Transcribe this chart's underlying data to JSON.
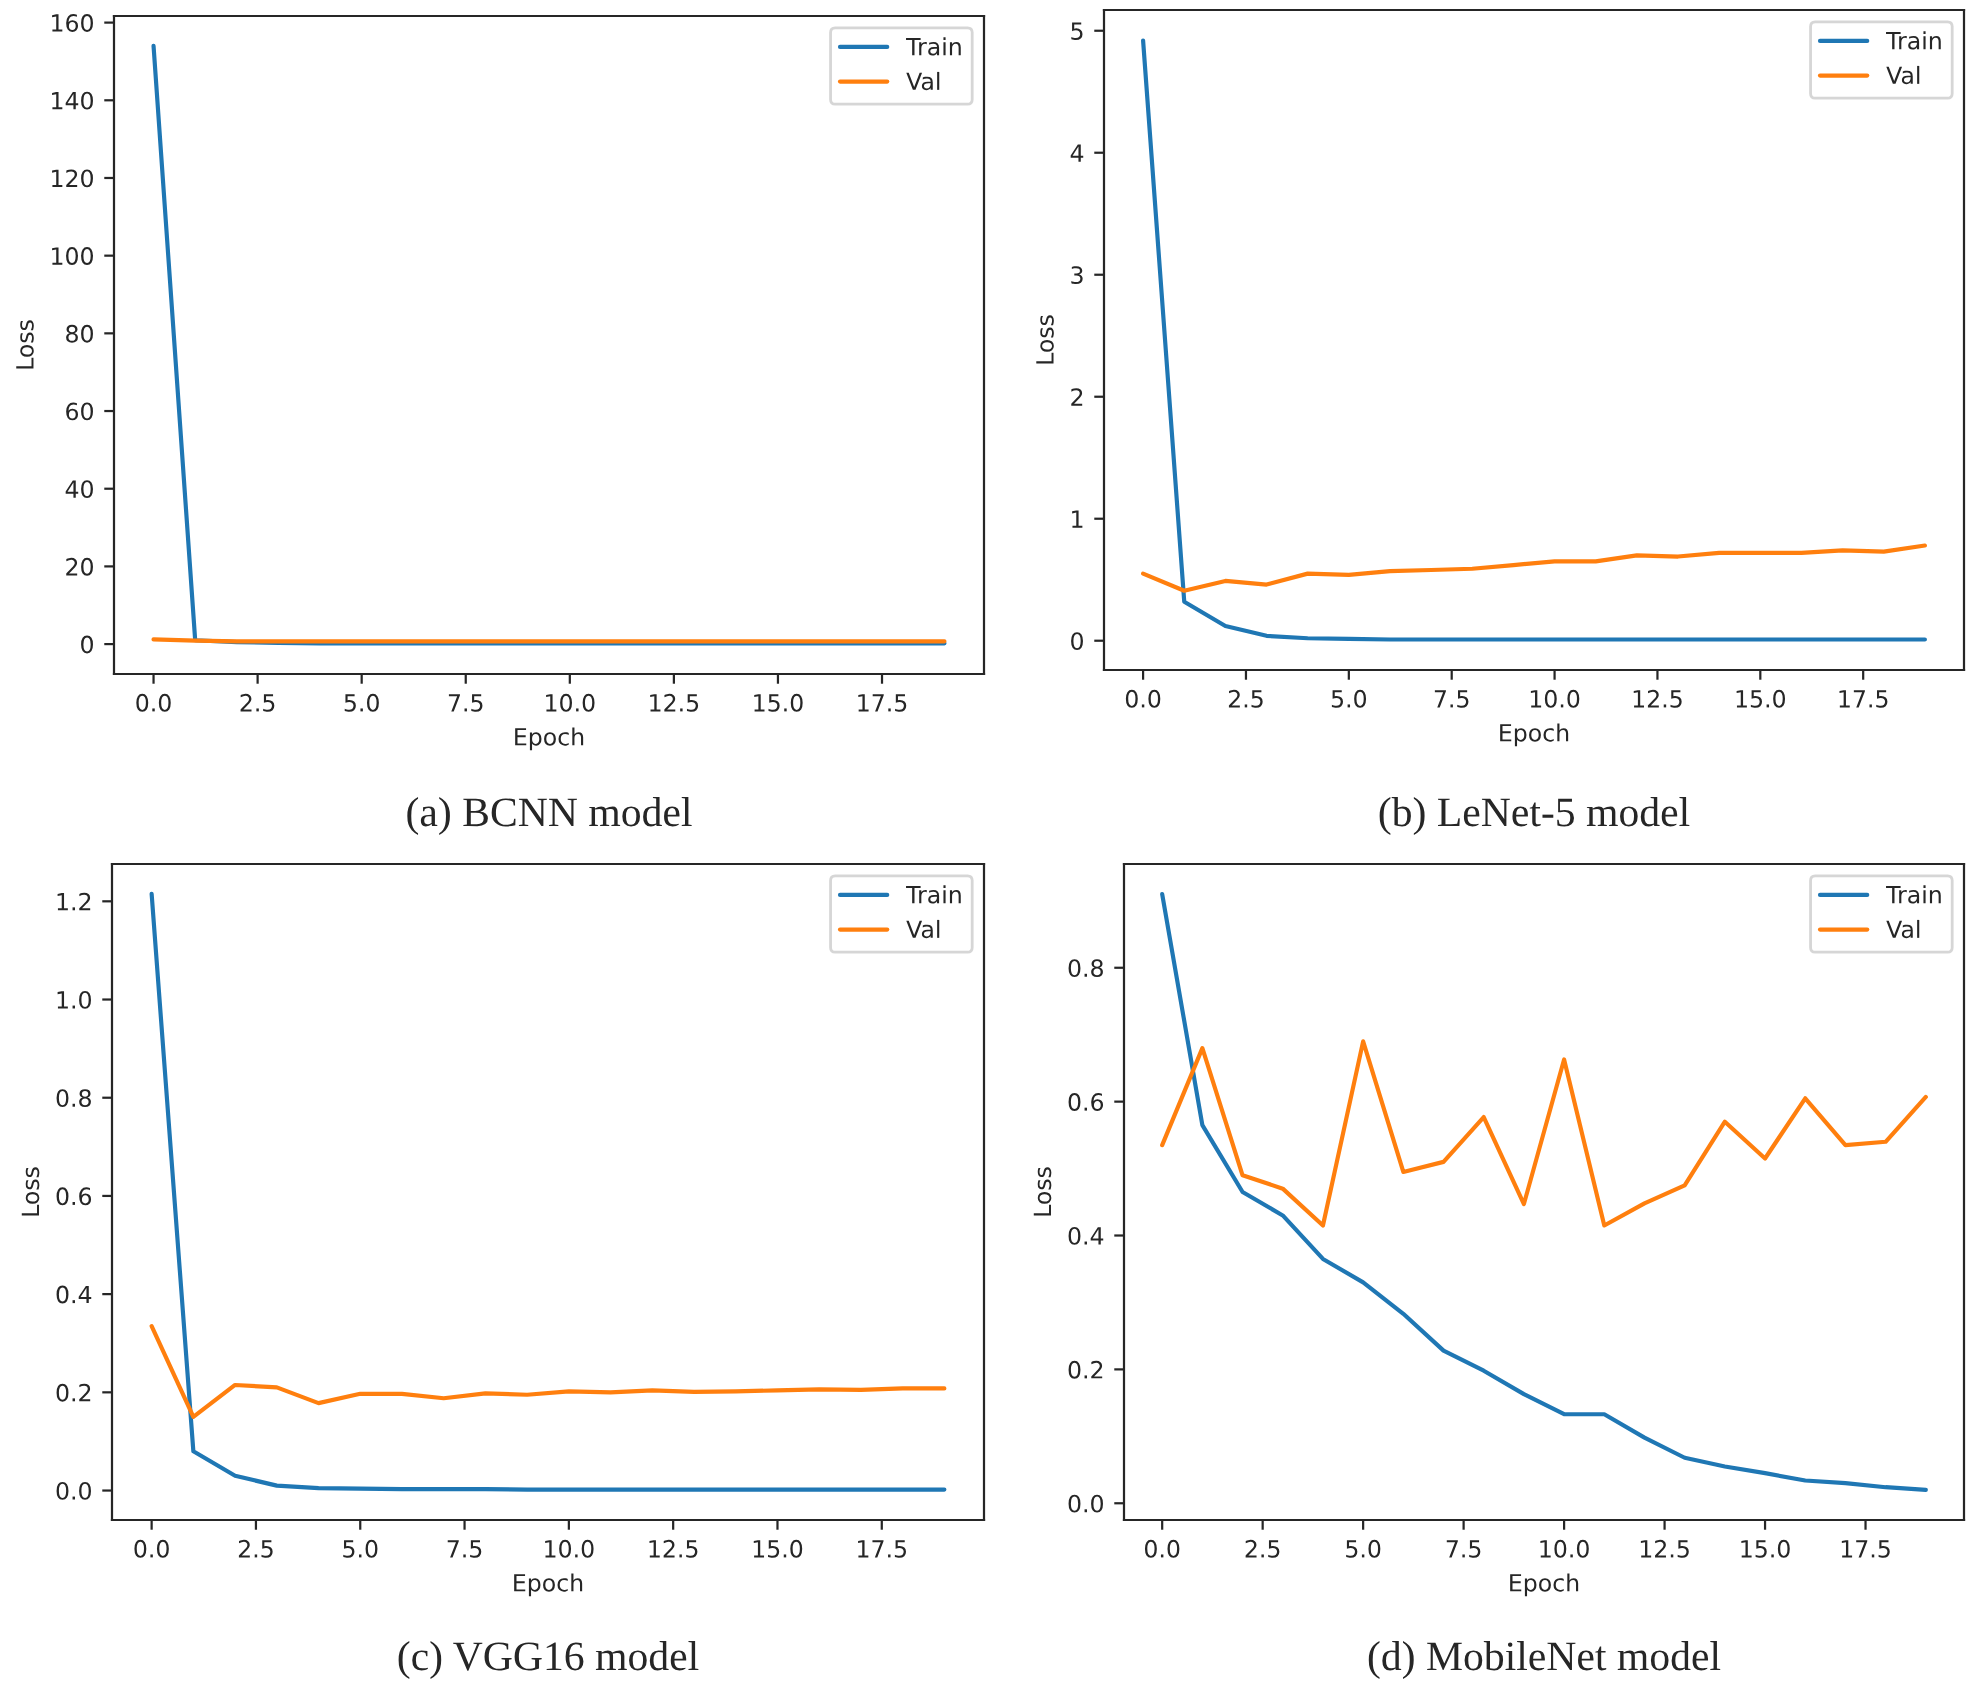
{
  "chart_data": [
    {
      "type": "line",
      "title": "(a) BCNN model",
      "xlabel": "Epoch",
      "ylabel": "Loss",
      "x": [
        0,
        1,
        2,
        3,
        4,
        5,
        6,
        7,
        8,
        9,
        10,
        11,
        12,
        13,
        14,
        15,
        16,
        17,
        18,
        19
      ],
      "series": [
        {
          "name": "Train",
          "color": "#1f77b4",
          "values": [
            154,
            1,
            0.5,
            0.3,
            0.2,
            0.2,
            0.2,
            0.2,
            0.2,
            0.2,
            0.2,
            0.2,
            0.2,
            0.2,
            0.2,
            0.2,
            0.2,
            0.2,
            0.2,
            0.2
          ]
        },
        {
          "name": "Val",
          "color": "#ff7f0e",
          "values": [
            1.2,
            0.9,
            0.7,
            0.7,
            0.7,
            0.7,
            0.7,
            0.7,
            0.7,
            0.7,
            0.7,
            0.7,
            0.7,
            0.7,
            0.7,
            0.7,
            0.7,
            0.7,
            0.7,
            0.7
          ]
        }
      ],
      "xlim": [
        -0.95,
        19.95
      ],
      "xticks": [
        {
          "value": 0,
          "label": "0.0"
        },
        {
          "value": 2.5,
          "label": "2.5"
        },
        {
          "value": 5,
          "label": "5.0"
        },
        {
          "value": 7.5,
          "label": "7.5"
        },
        {
          "value": 10,
          "label": "10.0"
        },
        {
          "value": 12.5,
          "label": "12.5"
        },
        {
          "value": 15,
          "label": "15.0"
        },
        {
          "value": 17.5,
          "label": "17.5"
        }
      ],
      "ylim": [
        -7.7,
        161.7
      ],
      "yticks": [
        0,
        20,
        40,
        60,
        80,
        100,
        120,
        140,
        160
      ],
      "legend": "top right"
    },
    {
      "type": "line",
      "title": "(b) LeNet-5 model",
      "xlabel": "Epoch",
      "ylabel": "Loss",
      "x": [
        0,
        1,
        2,
        3,
        4,
        5,
        6,
        7,
        8,
        9,
        10,
        11,
        12,
        13,
        14,
        15,
        16,
        17,
        18,
        19
      ],
      "series": [
        {
          "name": "Train",
          "color": "#1f77b4",
          "values": [
            4.92,
            0.32,
            0.12,
            0.04,
            0.02,
            0.015,
            0.01,
            0.01,
            0.01,
            0.01,
            0.01,
            0.01,
            0.01,
            0.01,
            0.01,
            0.01,
            0.01,
            0.01,
            0.01,
            0.01
          ]
        },
        {
          "name": "Val",
          "color": "#ff7f0e",
          "values": [
            0.55,
            0.41,
            0.49,
            0.46,
            0.55,
            0.54,
            0.57,
            0.58,
            0.59,
            0.62,
            0.65,
            0.65,
            0.7,
            0.69,
            0.72,
            0.72,
            0.72,
            0.74,
            0.73,
            0.78
          ]
        }
      ],
      "xlim": [
        -0.95,
        19.95
      ],
      "xticks": [
        {
          "value": 0,
          "label": "0.0"
        },
        {
          "value": 2.5,
          "label": "2.5"
        },
        {
          "value": 5,
          "label": "5.0"
        },
        {
          "value": 7.5,
          "label": "7.5"
        },
        {
          "value": 10,
          "label": "10.0"
        },
        {
          "value": 12.5,
          "label": "12.5"
        },
        {
          "value": 15,
          "label": "15.0"
        },
        {
          "value": 17.5,
          "label": "17.5"
        }
      ],
      "ylim": [
        -0.24,
        5.17
      ],
      "yticks": [
        0,
        1,
        2,
        3,
        4,
        5
      ],
      "legend": "top right"
    },
    {
      "type": "line",
      "title": "(c) VGG16 model",
      "xlabel": "Epoch",
      "ylabel": "Loss",
      "x": [
        0,
        1,
        2,
        3,
        4,
        5,
        6,
        7,
        8,
        9,
        10,
        11,
        12,
        13,
        14,
        15,
        16,
        17,
        18,
        19
      ],
      "series": [
        {
          "name": "Train",
          "color": "#1f77b4",
          "values": [
            1.215,
            0.08,
            0.03,
            0.01,
            0.005,
            0.004,
            0.003,
            0.003,
            0.003,
            0.002,
            0.002,
            0.002,
            0.002,
            0.002,
            0.002,
            0.002,
            0.002,
            0.002,
            0.002,
            0.002
          ]
        },
        {
          "name": "Val",
          "color": "#ff7f0e",
          "values": [
            0.335,
            0.15,
            0.215,
            0.21,
            0.178,
            0.197,
            0.197,
            0.188,
            0.198,
            0.195,
            0.202,
            0.2,
            0.204,
            0.201,
            0.202,
            0.204,
            0.206,
            0.205,
            0.208,
            0.208
          ]
        }
      ],
      "xlim": [
        -0.95,
        19.95
      ],
      "xticks": [
        {
          "value": 0,
          "label": "0.0"
        },
        {
          "value": 2.5,
          "label": "2.5"
        },
        {
          "value": 5,
          "label": "5.0"
        },
        {
          "value": 7.5,
          "label": "7.5"
        },
        {
          "value": 10,
          "label": "10.0"
        },
        {
          "value": 12.5,
          "label": "12.5"
        },
        {
          "value": 15,
          "label": "15.0"
        },
        {
          "value": 17.5,
          "label": "17.5"
        }
      ],
      "ylim": [
        -0.06,
        1.276
      ],
      "yticks": [
        {
          "value": 0,
          "label": "0.0"
        },
        {
          "value": 0.2,
          "label": "0.2"
        },
        {
          "value": 0.4,
          "label": "0.4"
        },
        {
          "value": 0.6,
          "label": "0.6"
        },
        {
          "value": 0.8,
          "label": "0.8"
        },
        {
          "value": 1.0,
          "label": "1.0"
        },
        {
          "value": 1.2,
          "label": "1.2"
        }
      ],
      "legend": "top right"
    },
    {
      "type": "line",
      "title": "(d) MobileNet model",
      "xlabel": "Epoch",
      "ylabel": "Loss",
      "x": [
        0,
        1,
        2,
        3,
        4,
        5,
        6,
        7,
        8,
        9,
        10,
        11,
        12,
        13,
        14,
        15,
        16,
        17,
        18,
        19
      ],
      "series": [
        {
          "name": "Train",
          "color": "#1f77b4",
          "values": [
            0.91,
            0.565,
            0.465,
            0.43,
            0.365,
            0.33,
            0.283,
            0.228,
            0.198,
            0.163,
            0.133,
            0.133,
            0.098,
            0.068,
            0.055,
            0.045,
            0.034,
            0.03,
            0.024,
            0.02
          ]
        },
        {
          "name": "Val",
          "color": "#ff7f0e",
          "values": [
            0.535,
            0.68,
            0.49,
            0.47,
            0.415,
            0.69,
            0.495,
            0.51,
            0.577,
            0.447,
            0.663,
            0.415,
            0.448,
            0.475,
            0.57,
            0.515,
            0.605,
            0.535,
            0.54,
            0.607
          ]
        }
      ],
      "xlim": [
        -0.95,
        19.95
      ],
      "xticks": [
        {
          "value": 0,
          "label": "0.0"
        },
        {
          "value": 2.5,
          "label": "2.5"
        },
        {
          "value": 5,
          "label": "5.0"
        },
        {
          "value": 7.5,
          "label": "7.5"
        },
        {
          "value": 10,
          "label": "10.0"
        },
        {
          "value": 12.5,
          "label": "12.5"
        },
        {
          "value": 15,
          "label": "15.0"
        },
        {
          "value": 17.5,
          "label": "17.5"
        }
      ],
      "ylim": [
        -0.025,
        0.955
      ],
      "yticks": [
        {
          "value": 0,
          "label": "0.0"
        },
        {
          "value": 0.2,
          "label": "0.2"
        },
        {
          "value": 0.4,
          "label": "0.4"
        },
        {
          "value": 0.6,
          "label": "0.6"
        },
        {
          "value": 0.8,
          "label": "0.8"
        }
      ],
      "legend": "top right"
    }
  ]
}
